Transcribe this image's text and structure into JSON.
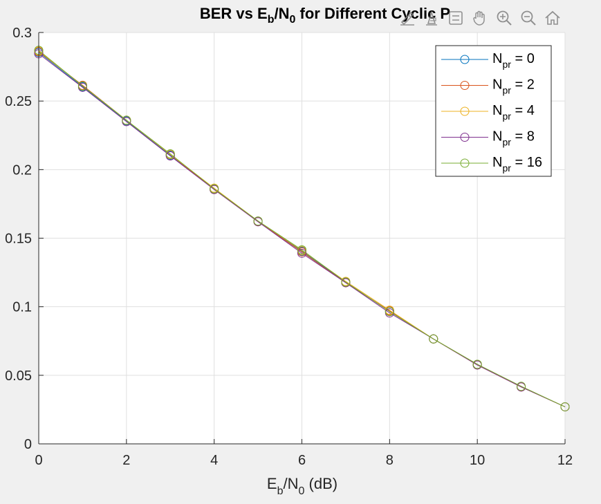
{
  "chart_data": {
    "type": "line",
    "title": "BER vs E_b/N_0 for Different Cyclic P",
    "title_parts": {
      "a": "BER vs E",
      "b": "b",
      "c": "/N",
      "d": "0",
      "e": " for Different Cyclic P"
    },
    "xlabel_parts": {
      "a": "E",
      "b": "b",
      "c": "/N",
      "d": "0",
      "e": " (dB)"
    },
    "ylabel": "",
    "xlim": [
      0,
      12
    ],
    "ylim": [
      0,
      0.3
    ],
    "xticks": [
      0,
      2,
      4,
      6,
      8,
      10,
      12
    ],
    "xtick_labels": [
      "0",
      "2",
      "4",
      "6",
      "8",
      "10",
      "12"
    ],
    "yticks": [
      0,
      0.05,
      0.1,
      0.15,
      0.2,
      0.25,
      0.3
    ],
    "ytick_labels": [
      "0",
      "0.05",
      "0.1",
      "0.15",
      "0.2",
      "0.25",
      "0.3"
    ],
    "grid": true,
    "legend_position": "top-right",
    "marker": "open-circle",
    "x": [
      0,
      1,
      2,
      3,
      4,
      5,
      6,
      7,
      8,
      9,
      10,
      11,
      12
    ],
    "series": [
      {
        "name_main": "N",
        "name_sub": "pr",
        "name_rest": " = 0",
        "color": "#0072BD",
        "values": [
          0.2855,
          0.2605,
          0.2355,
          0.2105,
          0.186,
          0.1625,
          0.1405,
          0.118,
          0.0965,
          0.0765,
          0.058,
          0.0415,
          0.027
        ]
      },
      {
        "name_main": "N",
        "name_sub": "pr",
        "name_rest": " = 2",
        "color": "#D95319",
        "values": [
          0.286,
          0.2615,
          0.236,
          0.211,
          0.1855,
          0.162,
          0.14,
          0.1175,
          0.097,
          0.0765,
          0.0575,
          0.0415,
          0.027
        ]
      },
      {
        "name_main": "N",
        "name_sub": "pr",
        "name_rest": " = 4",
        "color": "#EDB120",
        "values": [
          0.2865,
          0.261,
          0.236,
          0.211,
          0.1865,
          0.1625,
          0.141,
          0.1185,
          0.0975,
          0.0765,
          0.058,
          0.0415,
          0.027
        ]
      },
      {
        "name_main": "N",
        "name_sub": "pr",
        "name_rest": " = 8",
        "color": "#7E2F8E",
        "values": [
          0.2845,
          0.26,
          0.235,
          0.21,
          0.1855,
          0.162,
          0.139,
          0.1175,
          0.0955,
          0.0765,
          0.0575,
          0.0415,
          0.027
        ]
      },
      {
        "name_main": "N",
        "name_sub": "pr",
        "name_rest": " = 16",
        "color": "#77AC30",
        "values": [
          0.287,
          0.261,
          0.236,
          0.2115,
          0.186,
          0.1625,
          0.1415,
          0.118,
          0.0965,
          0.0765,
          0.058,
          0.042,
          0.027
        ]
      }
    ]
  },
  "toolbar": {
    "icons": [
      "brush-icon",
      "data-tip-icon",
      "legend-icon",
      "pan-hand-icon",
      "zoom-in-icon",
      "zoom-out-icon",
      "home-icon"
    ]
  }
}
